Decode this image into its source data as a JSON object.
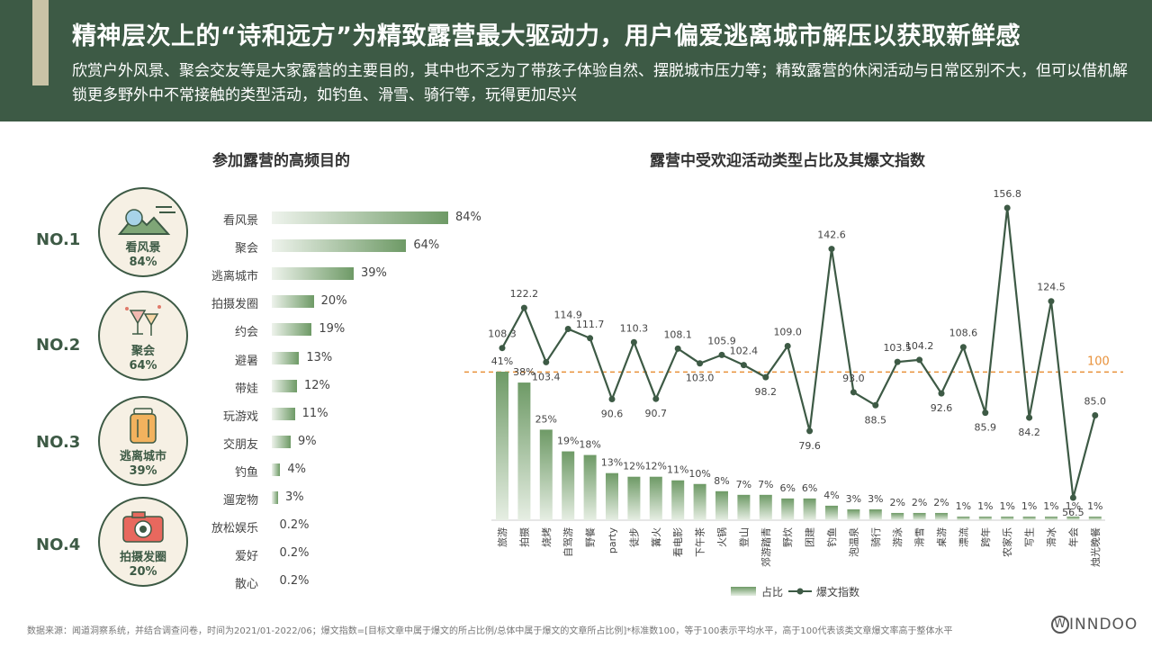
{
  "header": {
    "title": "精神层次上的“诗和远方”为精致露营最大驱动力，用户偏爱逃离城市解压以获取新鲜感",
    "subtitle": "欣赏户外风景、聚会交友等是大家露营的主要目的，其中也不乏为了带孩子体验自然、摆脱城市压力等；精致露营的休闲活动与日常区别不大，但可以借机解锁更多野外中不常接触的类型活动，如钓鱼、滑雪、骑行等，玩得更加尽兴"
  },
  "ranks": [
    {
      "rank": "NO.1",
      "name": "看风景",
      "pct": "84%",
      "icon": "mountain-icon"
    },
    {
      "rank": "NO.2",
      "name": "聚会",
      "pct": "64%",
      "icon": "cocktail-icon"
    },
    {
      "rank": "NO.3",
      "name": "逃离城市",
      "pct": "39%",
      "icon": "suitcase-icon"
    },
    {
      "rank": "NO.4",
      "name": "拍摄发圈",
      "pct": "20%",
      "icon": "camera-icon"
    }
  ],
  "chart_data": [
    {
      "type": "bar",
      "orientation": "horizontal",
      "title": "参加露营的高频目的",
      "categories": [
        "看风景",
        "聚会",
        "逃离城市",
        "拍摄发圈",
        "约会",
        "避暑",
        "带娃",
        "玩游戏",
        "交朋友",
        "钓鱼",
        "遛宠物",
        "放松娱乐",
        "爱好",
        "散心"
      ],
      "values": [
        84,
        64,
        39,
        20,
        19,
        13,
        12,
        11,
        9,
        4,
        3,
        0.2,
        0.2,
        0.2
      ],
      "value_labels": [
        "84%",
        "64%",
        "39%",
        "20%",
        "19%",
        "13%",
        "12%",
        "11%",
        "9%",
        "4%",
        "3%",
        "0.2%",
        "0.2%",
        "0.2%"
      ],
      "bar_color": "#6e9a66"
    },
    {
      "type": "bar+line",
      "title": "露营中受欢迎活动类型占比及其爆文指数",
      "categories": [
        "旅游",
        "拍摄",
        "烧烤",
        "自驾游",
        "野餐",
        "party",
        "徒步",
        "篝火",
        "看电影",
        "下午茶",
        "火锅",
        "登山",
        "郊游踏青",
        "野炊",
        "团建",
        "钓鱼",
        "泡温泉",
        "骑行",
        "游泳",
        "滑雪",
        "桌游",
        "漂流",
        "跨年",
        "农家乐",
        "写生",
        "滑冰",
        "年会",
        "烛光晚餐"
      ],
      "series": [
        {
          "name": "占比",
          "type": "bar",
          "values": [
            41,
            38,
            25,
            19,
            18,
            13,
            12,
            12,
            11,
            10,
            8,
            7,
            7,
            6,
            6,
            4,
            3,
            3,
            2,
            2,
            2,
            1,
            1,
            1,
            1,
            1,
            1,
            1
          ],
          "labels": [
            "41%",
            "38%",
            "25%",
            "19%",
            "18%",
            "13%",
            "12%",
            "12%",
            "11%",
            "10%",
            "8%",
            "7%",
            "7%",
            "6%",
            "6%",
            "4%",
            "3%",
            "3%",
            "2%",
            "2%",
            "2%",
            "1%",
            "1%",
            "1%",
            "1%",
            "1%",
            "1%",
            "1%"
          ],
          "color": "#7fa677"
        },
        {
          "name": "爆文指数",
          "type": "line",
          "values": [
            108.3,
            122.2,
            103.4,
            114.9,
            111.7,
            90.6,
            110.3,
            90.7,
            108.1,
            103.0,
            105.9,
            102.4,
            98.2,
            109.0,
            79.6,
            142.6,
            93.0,
            88.5,
            103.5,
            104.2,
            92.6,
            108.6,
            85.9,
            156.8,
            84.2,
            124.5,
            56.5,
            85.0
          ],
          "labels": [
            "108.3",
            "122.2",
            "103.4",
            "114.9",
            "111.7",
            "90.6",
            "110.3",
            "90.7",
            "108.1",
            "103.0",
            "105.9",
            "102.4",
            "98.2",
            "109.0",
            "79.6",
            "142.6",
            "93.0",
            "88.5",
            "103.5",
            "104.2",
            "92.6",
            "108.6",
            "85.9",
            "156.8",
            "84.2",
            "124.5",
            "56.5",
            "85.0"
          ],
          "color": "#3d5a45"
        }
      ],
      "reference_line": {
        "value": 100,
        "label": "100",
        "color": "#e8913a"
      },
      "legend": [
        "占比",
        "爆文指数"
      ],
      "legend_position": "bottom"
    }
  ],
  "footer": {
    "source": "数据来源：闻道洞察系统，并结合调查问卷，时间为2021/01-2022/06；爆文指数=[目标文章中属于爆文的所占比例/总体中属于爆文的文章所占比例]*标准数100，等于100表示平均水平，高于100代表该类文章爆文率高于整体水平",
    "logo": "INNDOO",
    "logo_mark": "W"
  }
}
